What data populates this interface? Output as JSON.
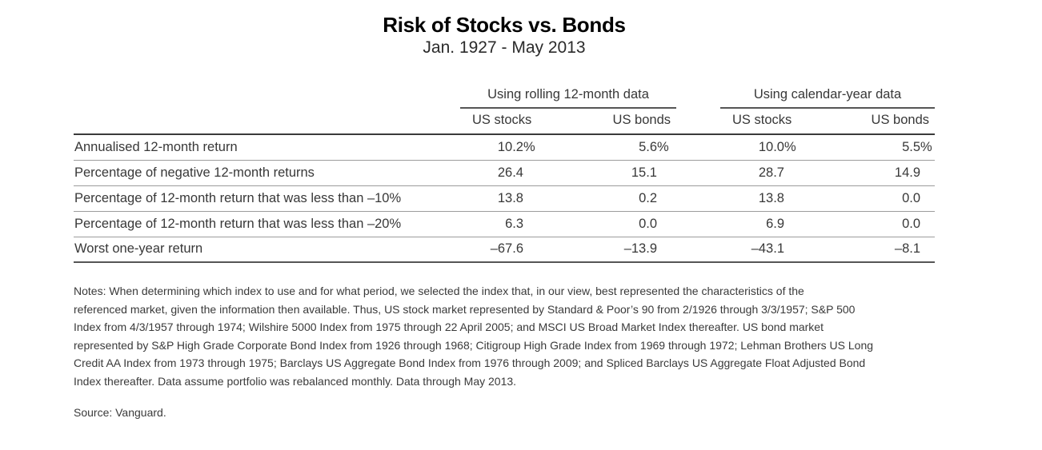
{
  "page": {
    "title": "Risk of Stocks vs. Bonds",
    "subtitle": "Jan. 1927 - May 2013"
  },
  "table": {
    "group_headers": [
      "Using rolling 12-month data",
      "Using calendar-year data"
    ],
    "column_headers": [
      "US stocks",
      "US bonds",
      "US stocks",
      "US bonds"
    ],
    "rows": [
      {
        "label": "Annualised 12-month return",
        "values": [
          "10.2%",
          "5.6%",
          "10.0%",
          "5.5%"
        ]
      },
      {
        "label": "Percentage of negative 12-month returns",
        "values": [
          "26.4",
          "15.1",
          "28.7",
          "14.9"
        ]
      },
      {
        "label": "Percentage of 12-month return that was less than –10%",
        "values": [
          "13.8",
          "0.2",
          "13.8",
          "0.0"
        ]
      },
      {
        "label": "Percentage of 12-month return that was less than –20%",
        "values": [
          "6.3",
          "0.0",
          "6.9",
          "0.0"
        ]
      },
      {
        "label": "Worst one-year return",
        "values": [
          "–67.6",
          "–13.9",
          "–43.1",
          "–8.1"
        ]
      }
    ]
  },
  "notes": {
    "lines": [
      "Notes: When determining which index to use and for what period, we selected the index that, in our view, best represented the characteristics of the",
      "referenced market, given the information then available. Thus, US stock market represented by Standard & Poor’s 90 from 2/1926 through 3/3/1957; S&P 500",
      "Index from 4/3/1957 through 1974; Wilshire 5000 Index from 1975 through 22 April 2005; and MSCI US Broad Market Index thereafter. US bond market",
      "represented by S&P High Grade Corporate Bond Index from 1926 through 1968; Citigroup High Grade Index from 1969 through 1972; Lehman Brothers US Long",
      "Credit AA Index from 1973 through 1975; Barclays US Aggregate Bond Index from 1976 through 2009; and Spliced Barclays US Aggregate Float Adjusted Bond",
      "Index thereafter. Data assume portfolio was rebalanced monthly. Data through May 2013."
    ]
  },
  "source": "Source: Vanguard.",
  "colors": {
    "background": "#ffffff",
    "title_text": "#000000",
    "body_text": "#3a3a3a",
    "rule_dark": "#3a3a3a",
    "rule_medium": "#555555",
    "rule_light": "#9c9c9c"
  },
  "chart_data": {
    "type": "table",
    "title": "Risk of Stocks vs. Bonds",
    "subtitle": "Jan. 1927 - May 2013",
    "column_groups": [
      "Using rolling 12-month data",
      "Using rolling 12-month data",
      "Using calendar-year data",
      "Using calendar-year data"
    ],
    "columns": [
      "US stocks",
      "US bonds",
      "US stocks",
      "US bonds"
    ],
    "rows": [
      [
        "Annualised 12-month return",
        "10.2%",
        "5.6%",
        "10.0%",
        "5.5%"
      ],
      [
        "Percentage of negative 12-month returns",
        "26.4",
        "15.1",
        "28.7",
        "14.9"
      ],
      [
        "Percentage of 12-month return that was less than –10%",
        "13.8",
        "0.2",
        "13.8",
        "0.0"
      ],
      [
        "Percentage of 12-month return that was less than –20%",
        "6.3",
        "0.0",
        "6.9",
        "0.0"
      ],
      [
        "Worst one-year return",
        "–67.6",
        "–13.9",
        "–43.1",
        "–8.1"
      ]
    ]
  }
}
